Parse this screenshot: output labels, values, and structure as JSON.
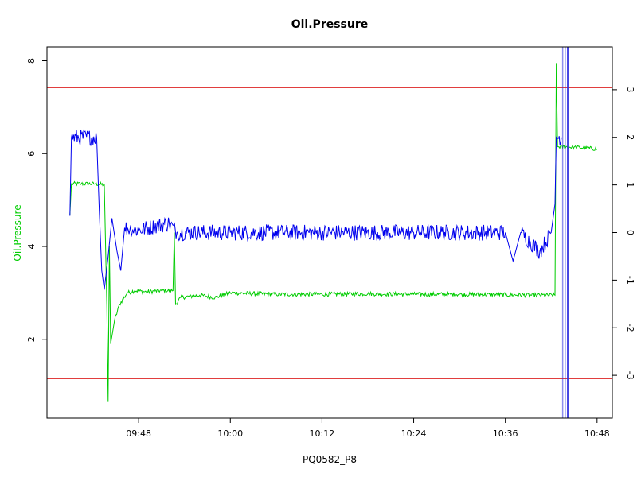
{
  "chart_data": {
    "type": "line",
    "title": "Oil.Pressure",
    "xlabel": "PQ0582_P8",
    "ylabel": "Oil.Pressure",
    "x_ticks": [
      "09:48",
      "10:00",
      "10:12",
      "10:24",
      "10:36",
      "10:48"
    ],
    "y_left": {
      "ticks": [
        2,
        4,
        6,
        8
      ],
      "range": [
        0.3,
        8.3
      ]
    },
    "y_right": {
      "ticks": [
        -3,
        -2,
        -1,
        0,
        1,
        2,
        3
      ],
      "range": [
        -3.9,
        3.9
      ]
    },
    "x_range": [
      "09:36",
      "10:50"
    ],
    "grid": false,
    "colors": {
      "left_series": "#00cc00",
      "right_series": "#0000ee",
      "limit_lines": "#dd2222",
      "ylabel": "#00cc00"
    },
    "limit_lines_left": [
      7.42,
      1.15
    ],
    "series": [
      {
        "axis": "left",
        "color": "#00cc00",
        "points": [
          [
            "09:39:00",
            4.68
          ],
          [
            "09:39:12",
            5.35
          ],
          [
            "09:40:30",
            5.35
          ],
          [
            "09:42:20",
            5.35
          ],
          [
            "09:43:30",
            5.33
          ],
          [
            "09:43:50",
            2.7
          ],
          [
            "09:44:00",
            0.65
          ],
          [
            "09:44:10",
            4.0
          ],
          [
            "09:44:20",
            1.9
          ],
          [
            "09:44:50",
            2.4
          ],
          [
            "09:45:30",
            2.75
          ],
          [
            "09:46:30",
            3.0
          ],
          [
            "09:47:30",
            3.05
          ],
          [
            "09:49:00",
            3.02
          ],
          [
            "09:51:00",
            3.05
          ],
          [
            "09:52:30",
            3.05
          ],
          [
            "09:52:40",
            4.3
          ],
          [
            "09:52:50",
            2.75
          ],
          [
            "09:53:30",
            2.9
          ],
          [
            "09:56:00",
            2.95
          ],
          [
            "09:58:00",
            2.9
          ],
          [
            "10:00:00",
            3.0
          ],
          [
            "10:06:00",
            2.97
          ],
          [
            "10:12:00",
            2.97
          ],
          [
            "10:18:00",
            2.98
          ],
          [
            "10:24:00",
            2.97
          ],
          [
            "10:30:00",
            2.97
          ],
          [
            "10:36:00",
            2.96
          ],
          [
            "10:40:00",
            2.95
          ],
          [
            "10:42:30",
            2.95
          ],
          [
            "10:42:40",
            7.95
          ],
          [
            "10:42:50",
            6.15
          ],
          [
            "10:45:00",
            6.14
          ],
          [
            "10:48:00",
            6.1
          ]
        ]
      },
      {
        "axis": "right",
        "color": "#0000ee",
        "points": [
          [
            "09:39:00",
            0.35
          ],
          [
            "09:39:12",
            2.0
          ],
          [
            "09:42:30",
            2.0
          ],
          [
            "09:42:50",
            0.5
          ],
          [
            "09:43:10",
            -0.8
          ],
          [
            "09:43:30",
            -1.2
          ],
          [
            "09:44:00",
            -0.5
          ],
          [
            "09:44:30",
            0.3
          ],
          [
            "09:45:10",
            -0.4
          ],
          [
            "09:45:40",
            -0.8
          ],
          [
            "09:46:10",
            0.1
          ],
          [
            "09:48:00",
            0.05
          ],
          [
            "09:52:00",
            0.2
          ],
          [
            "09:53:00",
            0.0
          ],
          [
            "10:00:00",
            0.0
          ],
          [
            "10:12:00",
            0.0
          ],
          [
            "10:24:00",
            0.0
          ],
          [
            "10:36:00",
            0.0
          ],
          [
            "10:37:00",
            -0.6
          ],
          [
            "10:38:00",
            0.0
          ],
          [
            "10:40:30",
            -0.4
          ],
          [
            "10:42:00",
            0.0
          ],
          [
            "10:42:30",
            0.6
          ],
          [
            "10:42:40",
            2.0
          ],
          [
            "10:43:20",
            2.0
          ]
        ]
      }
    ],
    "vertical_lines": [
      "10:43:30",
      "10:43:50",
      "10:44:10"
    ]
  }
}
